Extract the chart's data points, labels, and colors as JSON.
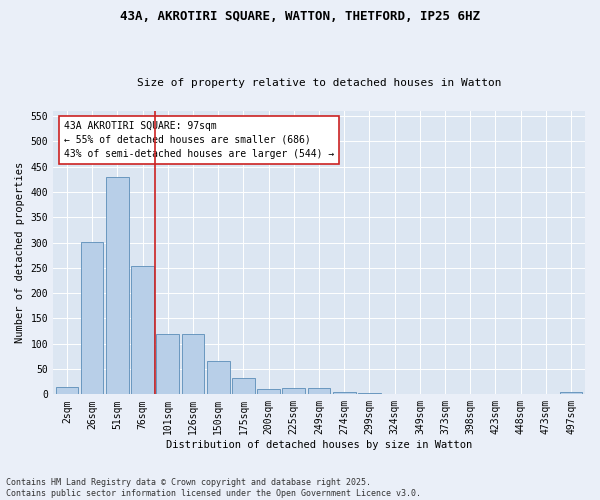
{
  "title_line1": "43A, AKROTIRI SQUARE, WATTON, THETFORD, IP25 6HZ",
  "title_line2": "Size of property relative to detached houses in Watton",
  "xlabel": "Distribution of detached houses by size in Watton",
  "ylabel": "Number of detached properties",
  "categories": [
    "2sqm",
    "26sqm",
    "51sqm",
    "76sqm",
    "101sqm",
    "126sqm",
    "150sqm",
    "175sqm",
    "200sqm",
    "225sqm",
    "249sqm",
    "274sqm",
    "299sqm",
    "324sqm",
    "349sqm",
    "373sqm",
    "398sqm",
    "423sqm",
    "448sqm",
    "473sqm",
    "497sqm"
  ],
  "values": [
    15,
    302,
    430,
    253,
    120,
    120,
    65,
    33,
    10,
    13,
    13,
    5,
    3,
    1,
    0,
    0,
    0,
    0,
    0,
    0,
    4
  ],
  "bar_color": "#b8cfe8",
  "bar_edge_color": "#5b8db8",
  "vline_x": 3.5,
  "vline_color": "#cc2222",
  "annotation_text": "43A AKROTIRI SQUARE: 97sqm\n← 55% of detached houses are smaller (686)\n43% of semi-detached houses are larger (544) →",
  "annotation_box_color": "#ffffff",
  "annotation_box_edge": "#cc2222",
  "ylim": [
    0,
    560
  ],
  "yticks": [
    0,
    50,
    100,
    150,
    200,
    250,
    300,
    350,
    400,
    450,
    500,
    550
  ],
  "footer_line1": "Contains HM Land Registry data © Crown copyright and database right 2025.",
  "footer_line2": "Contains public sector information licensed under the Open Government Licence v3.0.",
  "bg_color": "#eaeff8",
  "plot_bg_color": "#dce6f2",
  "grid_color": "#ffffff",
  "title_fontsize": 9,
  "subtitle_fontsize": 8,
  "axis_label_fontsize": 7.5,
  "tick_fontsize": 7,
  "footer_fontsize": 6
}
